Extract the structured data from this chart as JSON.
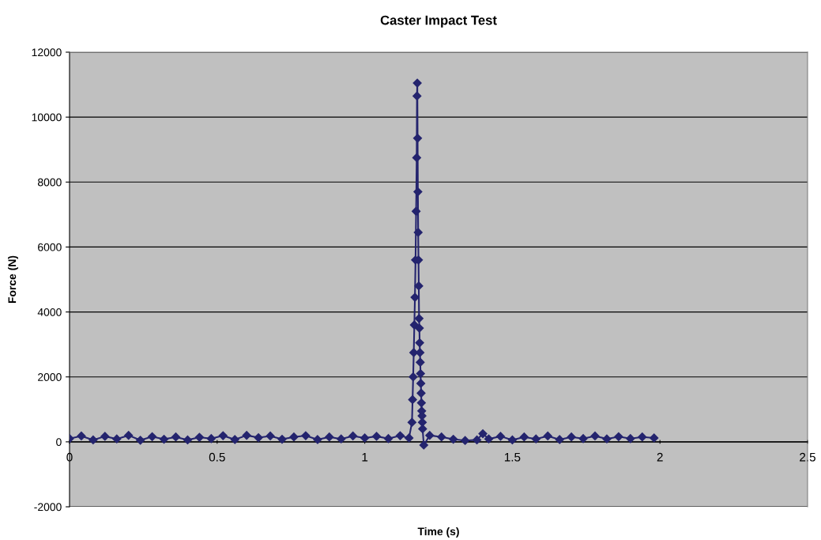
{
  "chart_data": {
    "type": "line",
    "title": "Caster Impact Test",
    "xlabel": "Time (s)",
    "ylabel": "Force (N)",
    "xlim": [
      0,
      2.5
    ],
    "xticks": [
      0,
      0.5,
      1,
      1.5,
      2,
      2.5
    ],
    "ylim": [
      -2000,
      12000
    ],
    "yticks": [
      -2000,
      0,
      2000,
      4000,
      6000,
      8000,
      10000,
      12000
    ],
    "grid": "y",
    "marker": "diamond",
    "line_style": "solid",
    "legend": false,
    "series": [
      {
        "color": "#24246e",
        "x": [
          0,
          0.04,
          0.08,
          0.12,
          0.16,
          0.2,
          0.24,
          0.28,
          0.32,
          0.36,
          0.4,
          0.44,
          0.48,
          0.52,
          0.56,
          0.6,
          0.64,
          0.68,
          0.72,
          0.76,
          0.8,
          0.84,
          0.88,
          0.92,
          0.96,
          1.0,
          1.04,
          1.08,
          1.12,
          1.15,
          1.16,
          1.162,
          1.164,
          1.166,
          1.168,
          1.17,
          1.172,
          1.174,
          1.176,
          1.177,
          1.178,
          1.179,
          1.18,
          1.181,
          1.182,
          1.183,
          1.184,
          1.185,
          1.186,
          1.187,
          1.188,
          1.189,
          1.19,
          1.191,
          1.192,
          1.193,
          1.194,
          1.195,
          1.196,
          1.2,
          1.22,
          1.26,
          1.3,
          1.34,
          1.38,
          1.4,
          1.42,
          1.46,
          1.5,
          1.54,
          1.58,
          1.62,
          1.66,
          1.7,
          1.74,
          1.78,
          1.82,
          1.86,
          1.9,
          1.94,
          1.98
        ],
        "values": [
          100,
          180,
          60,
          170,
          90,
          200,
          50,
          160,
          80,
          150,
          60,
          140,
          100,
          190,
          70,
          200,
          130,
          180,
          80,
          150,
          190,
          70,
          150,
          90,
          180,
          120,
          170,
          100,
          190,
          120,
          600,
          1300,
          2000,
          2750,
          3600,
          4450,
          5600,
          7100,
          8750,
          10650,
          11050,
          9350,
          7700,
          6450,
          5600,
          4800,
          3800,
          3500,
          3050,
          2750,
          2450,
          2100,
          1800,
          1500,
          1200,
          950,
          800,
          600,
          400,
          -100,
          200,
          150,
          80,
          40,
          60,
          250,
          90,
          170,
          60,
          150,
          90,
          180,
          70,
          150,
          100,
          180,
          90,
          160,
          100,
          150,
          120
        ]
      }
    ]
  }
}
